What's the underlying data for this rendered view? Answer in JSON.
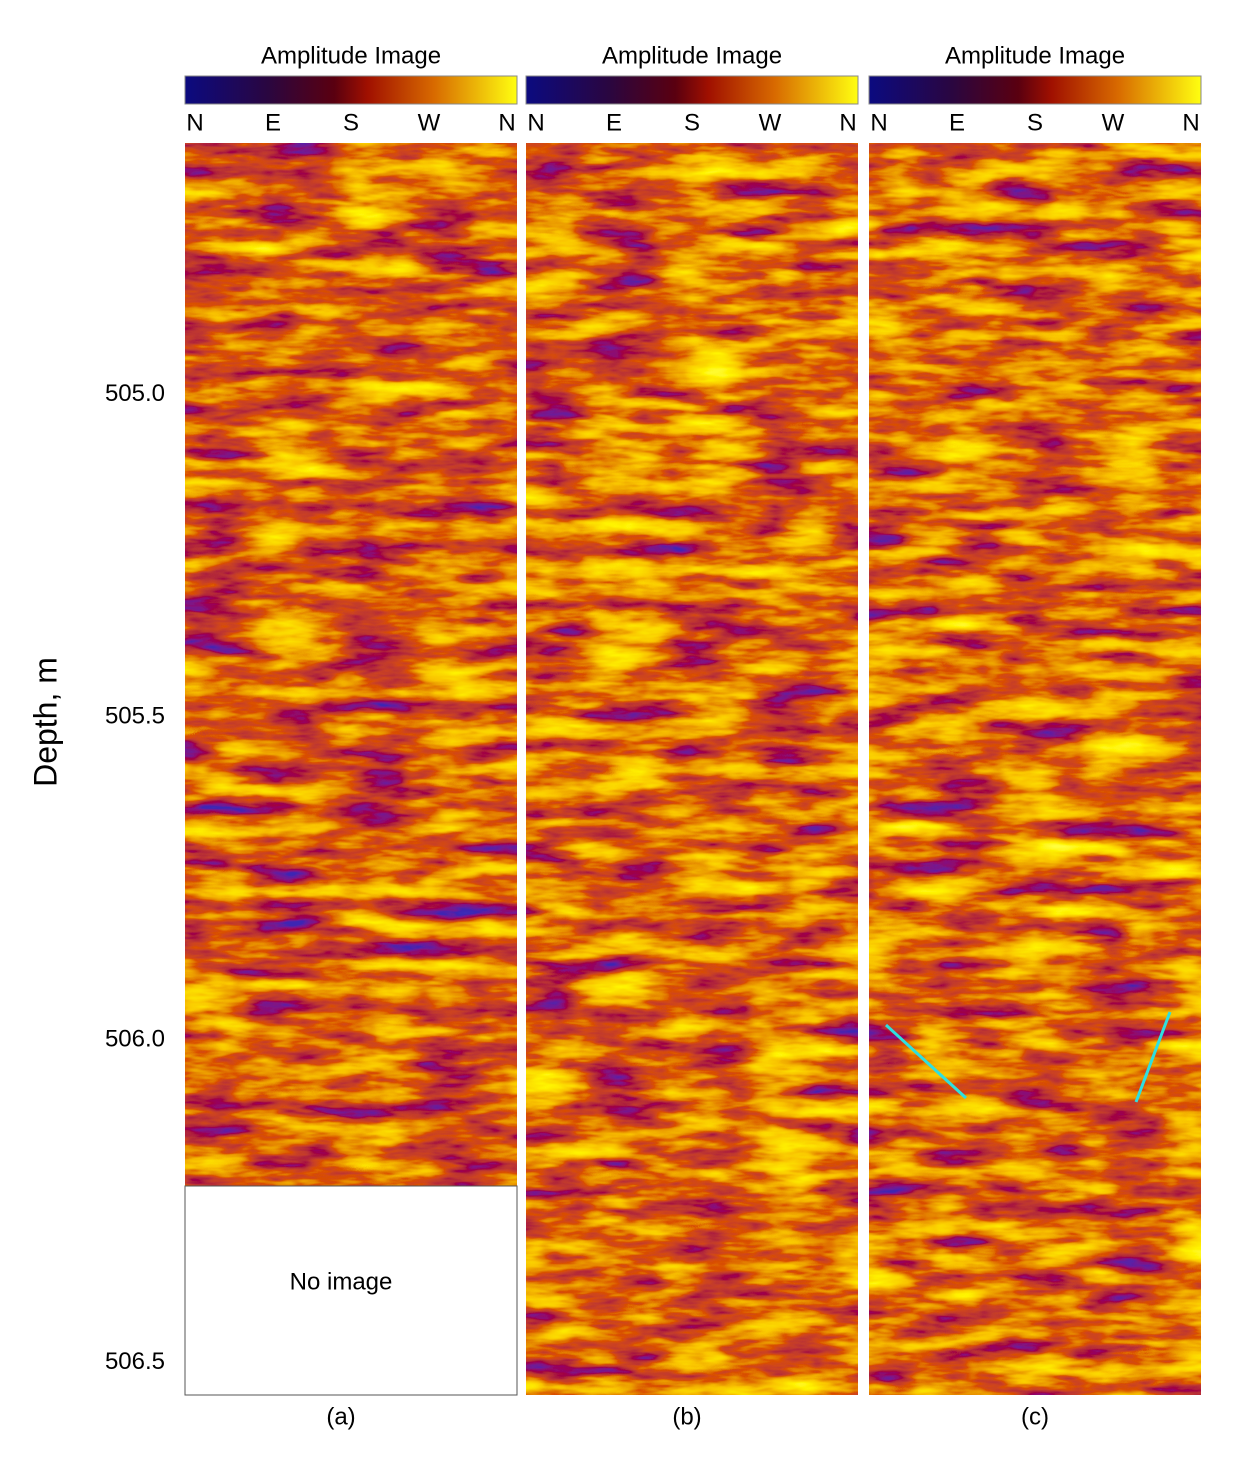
{
  "figure": {
    "depth_axis": {
      "label": "Depth, m",
      "ylim": [
        504.61,
        506.55
      ],
      "yticks": [
        {
          "value": 505.0,
          "label": "505.0"
        },
        {
          "value": 505.5,
          "label": "505.5"
        },
        {
          "value": 506.0,
          "label": "506.0"
        },
        {
          "value": 506.5,
          "label": "506.5"
        }
      ]
    },
    "panels": [
      {
        "title": "Amplitude Image",
        "compass": [
          "N",
          "E",
          "S",
          "W",
          "N"
        ],
        "caption": "(a)",
        "note": "No image"
      },
      {
        "title": "Amplitude Image",
        "compass": [
          "N",
          "E",
          "S",
          "W",
          "N"
        ],
        "caption": "(b)"
      },
      {
        "title": "Amplitude Image",
        "compass": [
          "N",
          "E",
          "S",
          "W",
          "N"
        ],
        "caption": "(c)"
      }
    ]
  }
}
